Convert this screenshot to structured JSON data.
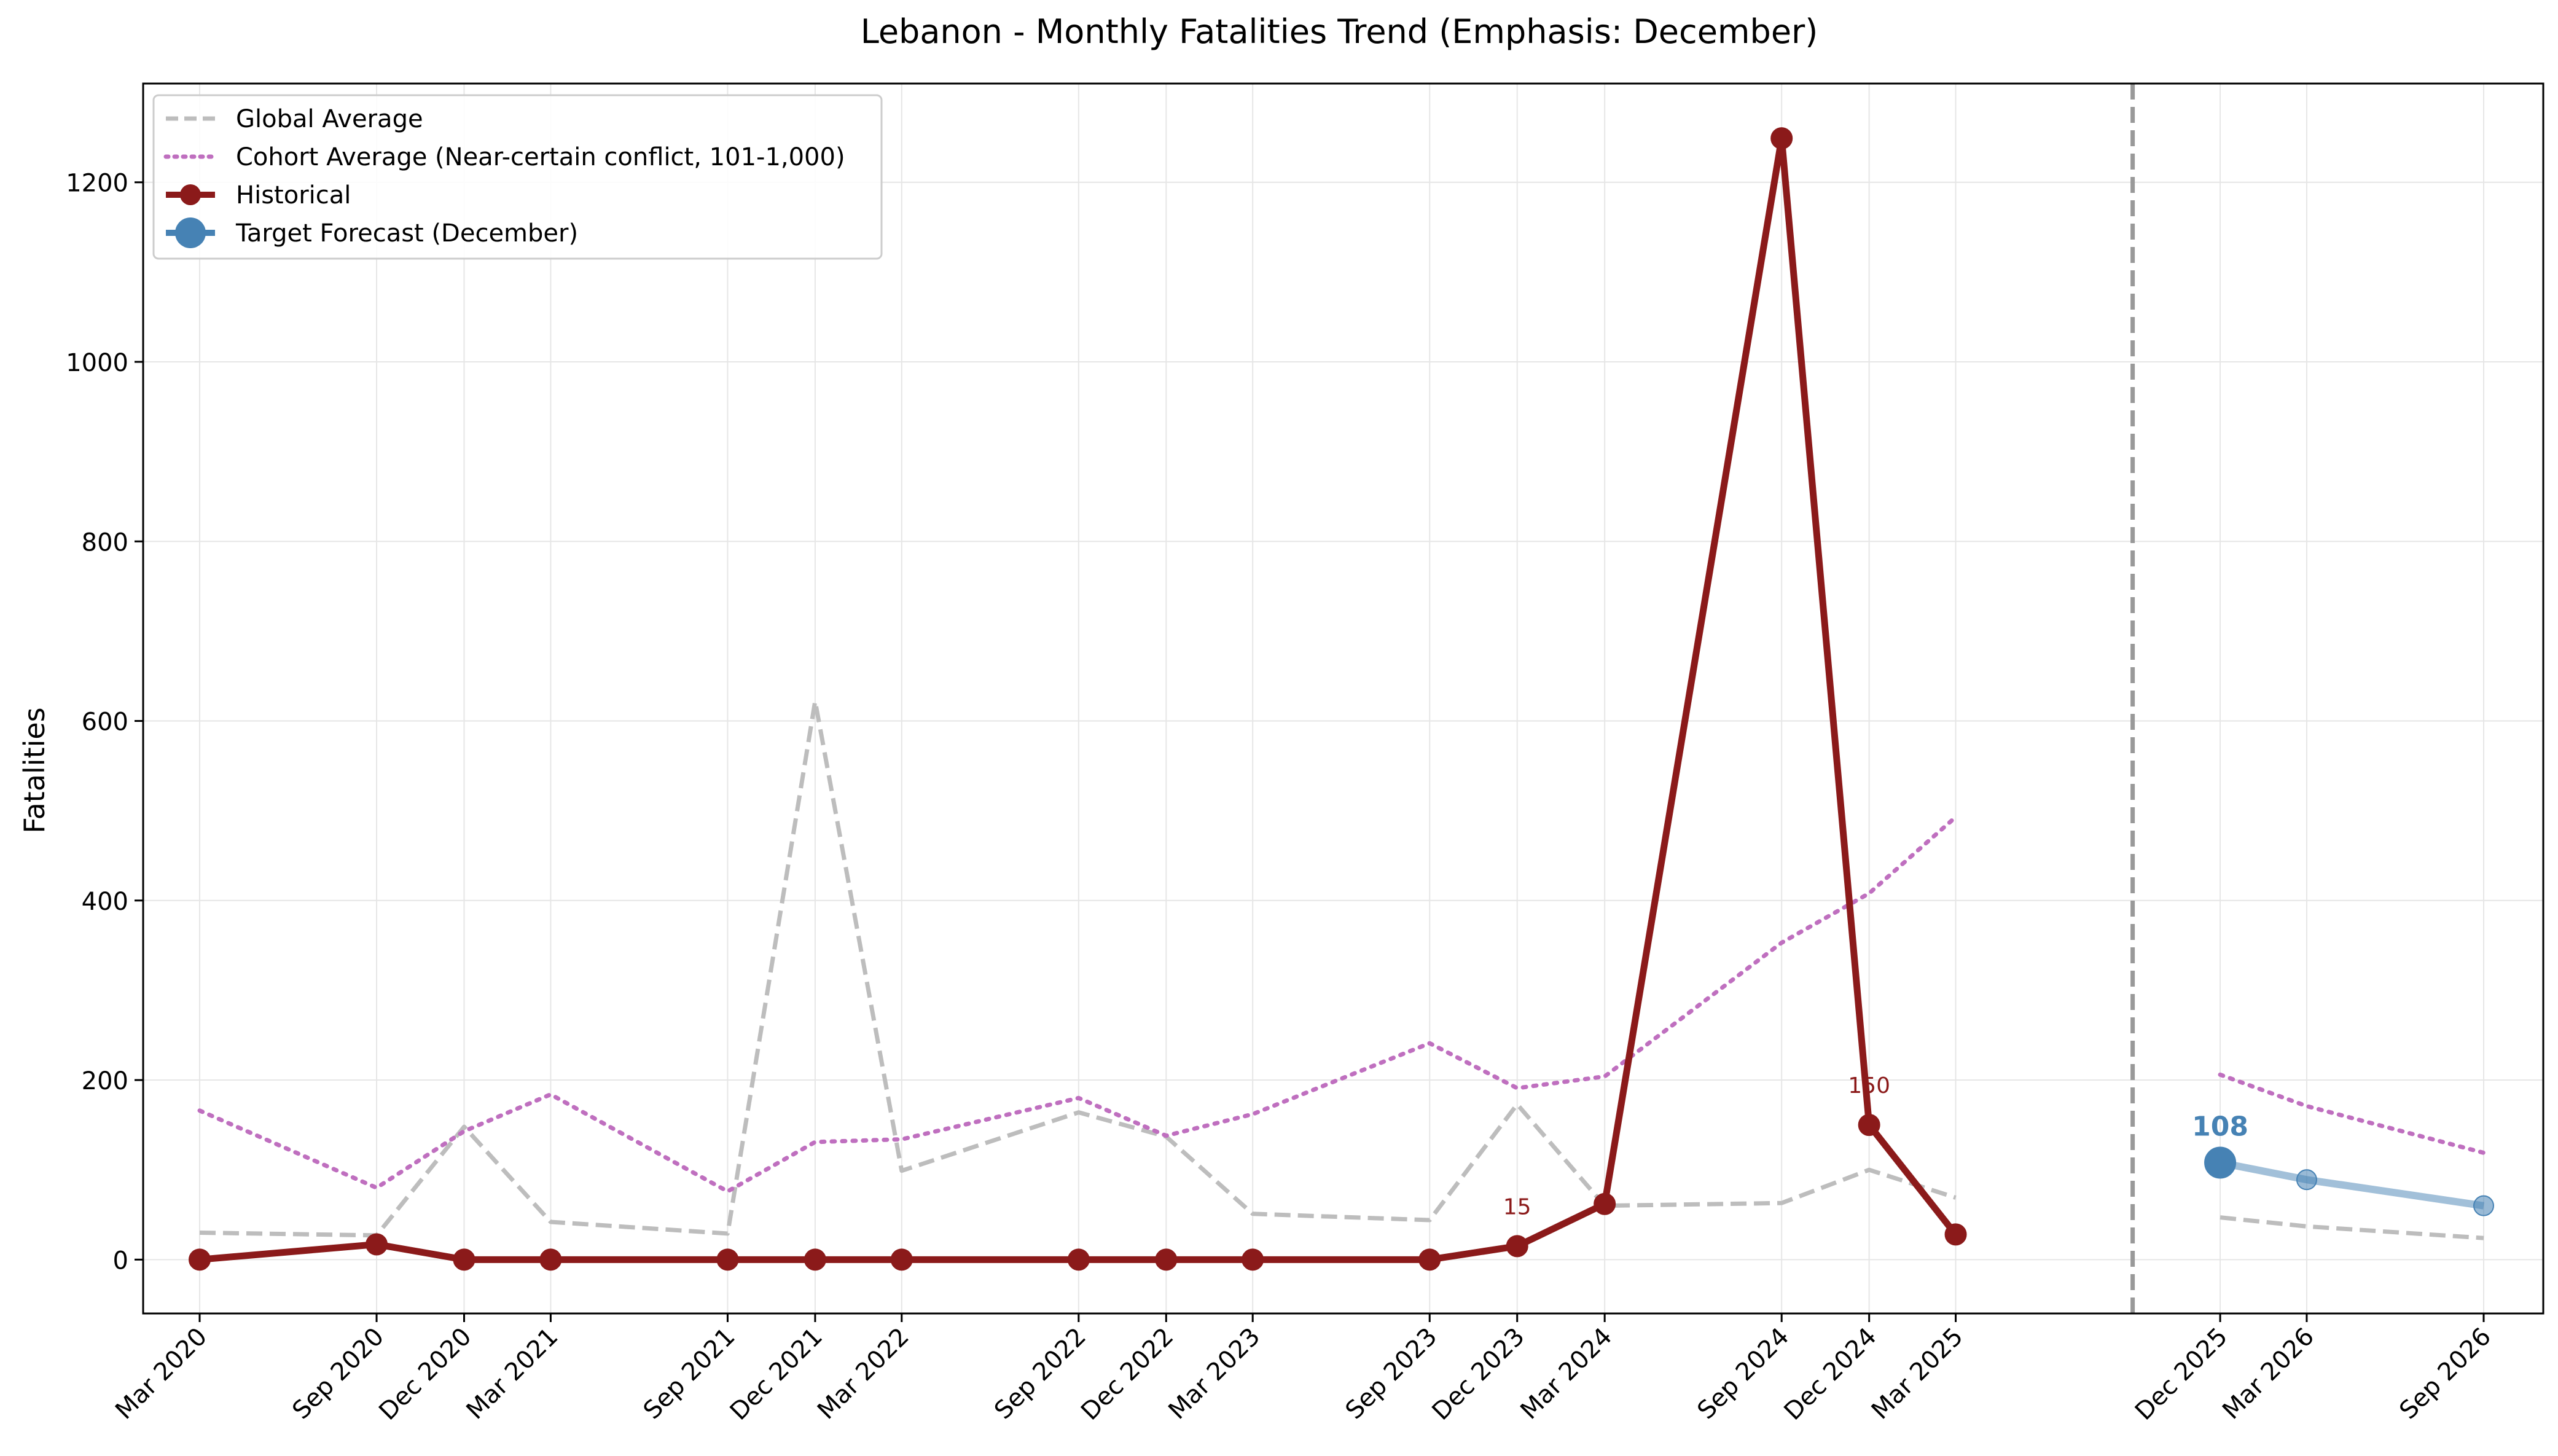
{
  "chart_data": {
    "type": "line",
    "title": "Lebanon - Monthly Fatalities Trend (Emphasis: December)",
    "xlabel": "",
    "ylabel": "Fatalities",
    "ylim": [
      -60,
      1310
    ],
    "yticks": [
      0,
      200,
      400,
      600,
      800,
      1000,
      1200
    ],
    "grid": true,
    "legend_position": "upper-left",
    "forecast_divider_date": "2025-09-01",
    "x_tick_labels": [
      "Mar 2020",
      "Sep 2020",
      "Dec 2020",
      "Mar 2021",
      "Sep 2021",
      "Dec 2021",
      "Mar 2022",
      "Sep 2022",
      "Dec 2022",
      "Mar 2023",
      "Sep 2023",
      "Dec 2023",
      "Mar 2024",
      "Sep 2024",
      "Dec 2024",
      "Mar 2025",
      "Dec 2025",
      "Mar 2026",
      "Sep 2026"
    ],
    "x_tick_dates": [
      "2020-03-01",
      "2020-09-01",
      "2020-12-01",
      "2021-03-01",
      "2021-09-01",
      "2021-12-01",
      "2022-03-01",
      "2022-09-01",
      "2022-12-01",
      "2023-03-01",
      "2023-09-01",
      "2023-12-01",
      "2024-03-01",
      "2024-09-01",
      "2024-12-01",
      "2025-03-01",
      "2025-12-01",
      "2026-03-01",
      "2026-09-01"
    ],
    "series": [
      {
        "name": "Global Average",
        "color": "#bdbdbd",
        "style": "dashed",
        "segments": [
          {
            "x": [
              "2020-03-01",
              "2020-09-01",
              "2020-12-01",
              "2021-03-01",
              "2021-09-01",
              "2021-12-01",
              "2022-03-01",
              "2022-09-01",
              "2022-12-01",
              "2023-03-01",
              "2023-09-01",
              "2023-12-01",
              "2024-03-01",
              "2024-09-01",
              "2024-12-01",
              "2025-03-01"
            ],
            "values": [
              30,
              27,
              148,
              42,
              29,
              622,
              99,
              164,
              137,
              51,
              44,
              173,
              60,
              63,
              100,
              69
            ]
          },
          {
            "x": [
              "2025-12-01",
              "2026-03-01",
              "2026-09-01"
            ],
            "values": [
              47,
              37,
              24
            ]
          }
        ]
      },
      {
        "name": "Cohort Average (Near-certain conflict, 101-1,000)",
        "color": "#bf6fbf",
        "style": "dotted",
        "segments": [
          {
            "x": [
              "2020-03-01",
              "2020-09-01",
              "2020-12-01",
              "2021-03-01",
              "2021-09-01",
              "2021-12-01",
              "2022-03-01",
              "2022-09-01",
              "2022-12-01",
              "2023-03-01",
              "2023-09-01",
              "2023-12-01",
              "2024-03-01",
              "2024-09-01",
              "2024-12-01",
              "2025-03-01"
            ],
            "values": [
              166,
              80,
              143,
              184,
              76,
              131,
              134,
              180,
              138,
              162,
              241,
              191,
              204,
              353,
              408,
              493
            ]
          },
          {
            "x": [
              "2025-12-01",
              "2026-03-01",
              "2026-09-01"
            ],
            "values": [
              206,
              171,
              119
            ]
          }
        ]
      },
      {
        "name": "Historical",
        "color": "#8b1a1a",
        "style": "solid-marker",
        "segments": [
          {
            "x": [
              "2020-03-01",
              "2020-09-01",
              "2020-12-01",
              "2021-03-01",
              "2021-09-01",
              "2021-12-01",
              "2022-03-01",
              "2022-09-01",
              "2022-12-01",
              "2023-03-01",
              "2023-09-01",
              "2023-12-01",
              "2024-03-01",
              "2024-09-01",
              "2024-12-01",
              "2025-03-01"
            ],
            "values": [
              0,
              17,
              0,
              0,
              0,
              0,
              0,
              0,
              0,
              0,
              0,
              15,
              62,
              1249,
              150,
              28
            ]
          }
        ]
      },
      {
        "name": "Target Forecast (December)",
        "color": "#4682b4",
        "style": "solid-marker",
        "segments": [
          {
            "x": [
              "2025-12-01",
              "2026-03-01",
              "2026-09-01"
            ],
            "values": [
              108,
              89,
              60
            ]
          }
        ]
      }
    ],
    "annotations": [
      {
        "x": "2023-12-01",
        "y": 15,
        "text": "15",
        "color": "#8b1a1a",
        "bold": false
      },
      {
        "x": "2024-12-01",
        "y": 150,
        "text": "150",
        "color": "#8b1a1a",
        "bold": false
      },
      {
        "x": "2025-12-01",
        "y": 108,
        "text": "108",
        "color": "#4682b4",
        "bold": true
      }
    ]
  }
}
